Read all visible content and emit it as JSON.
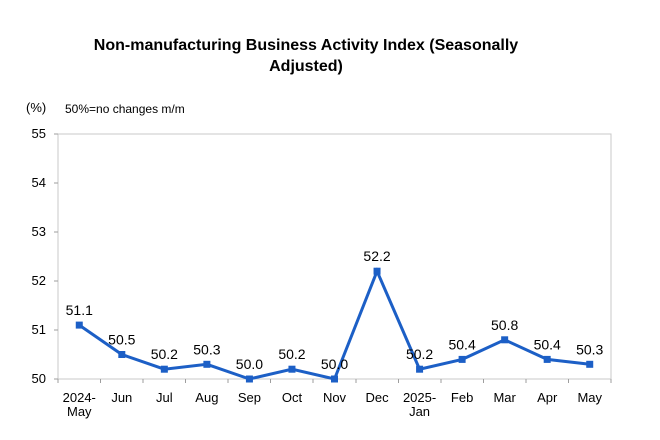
{
  "chart_data": {
    "type": "line",
    "title": "Non-manufacturing Business Activity Index (Seasonally Adjusted)",
    "title_lines": [
      "Non-manufacturing Business Activity Index (Seasonally",
      "Adjusted)"
    ],
    "unit_label": "(%)",
    "subtitle": "50%=no changes m/m",
    "categories": [
      "2024-May",
      "Jun",
      "Jul",
      "Aug",
      "Sep",
      "Oct",
      "Nov",
      "Dec",
      "2025-Jan",
      "Feb",
      "Mar",
      "Apr",
      "May"
    ],
    "category_labels": [
      [
        "2024-",
        "May"
      ],
      [
        "Jun"
      ],
      [
        "Jul"
      ],
      [
        "Aug"
      ],
      [
        "Sep"
      ],
      [
        "Oct"
      ],
      [
        "Nov"
      ],
      [
        "Dec"
      ],
      [
        "2025-",
        "Jan"
      ],
      [
        "Feb"
      ],
      [
        "Mar"
      ],
      [
        "Apr"
      ],
      [
        "May"
      ]
    ],
    "values": [
      51.1,
      50.5,
      50.2,
      50.3,
      50.0,
      50.2,
      50.0,
      52.2,
      50.2,
      50.4,
      50.8,
      50.4,
      50.3
    ],
    "ylim": [
      50,
      55
    ],
    "yticks": [
      55,
      54,
      53,
      52,
      51,
      50
    ],
    "xlabel": "",
    "ylabel": "(%)",
    "grid": false,
    "legend": "none",
    "line_color": "#1C5FC6",
    "marker": "square",
    "border_color": "#C8C8C8",
    "tick_color": "#9E9E9E",
    "label_color": "#000000",
    "data_label_decimals": 1
  }
}
